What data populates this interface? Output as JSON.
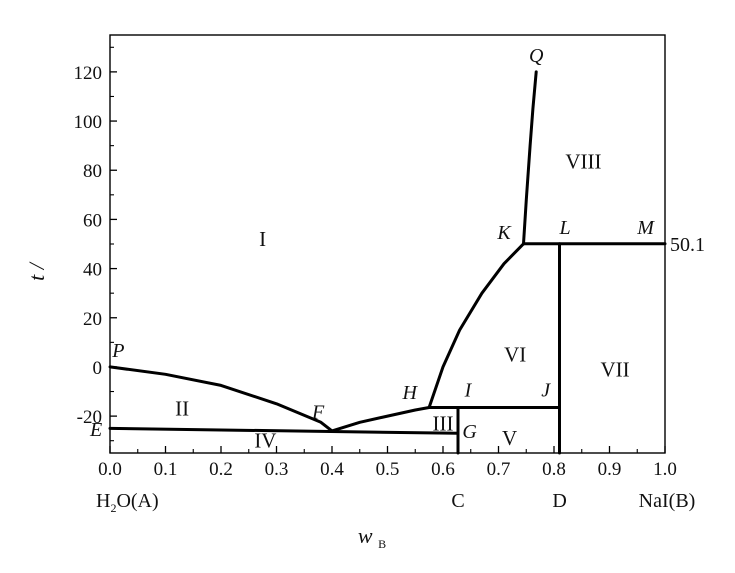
{
  "chart_data": {
    "type": "phase-diagram",
    "xlabel": "w",
    "xlabel_sub": "B",
    "ylabel": "t /",
    "xlim": [
      0.0,
      1.0
    ],
    "ylim": [
      -35,
      135
    ],
    "x_ticks": [
      0.0,
      0.1,
      0.2,
      0.3,
      0.4,
      0.5,
      0.6,
      0.7,
      0.8,
      0.9,
      1.0
    ],
    "x_tick_labels": [
      "0.0",
      "0.1",
      "0.2",
      "0.3",
      "0.4",
      "0.5",
      "0.6",
      "0.7",
      "0.8",
      "0.9",
      "1.0"
    ],
    "y_ticks": [
      -20,
      0,
      20,
      40,
      60,
      80,
      100,
      120
    ],
    "y_tick_labels": [
      "-20",
      "0",
      "20",
      "40",
      "60",
      "80",
      "100",
      "120"
    ],
    "components": [
      {
        "label_main": "H",
        "label_sub": "2",
        "label_rest": "O(A)",
        "x": 0.0
      },
      {
        "label_main": "C",
        "label_sub": "",
        "label_rest": "",
        "x": 0.627
      },
      {
        "label_main": "D",
        "label_sub": "",
        "label_rest": "",
        "x": 0.81
      },
      {
        "label_main": "NaI(B)",
        "label_sub": "",
        "label_rest": "",
        "x": 1.0
      }
    ],
    "side_annotation": {
      "text": "50.1",
      "y": 50.1
    },
    "curves": [
      {
        "name": "PF",
        "points": [
          [
            0.0,
            0.0
          ],
          [
            0.1,
            -3.0
          ],
          [
            0.2,
            -7.5
          ],
          [
            0.3,
            -15.0
          ],
          [
            0.38,
            -22.5
          ],
          [
            0.4,
            -26.0
          ]
        ]
      },
      {
        "name": "FH",
        "points": [
          [
            0.4,
            -26.0
          ],
          [
            0.45,
            -22.5
          ],
          [
            0.5,
            -20.0
          ],
          [
            0.55,
            -17.5
          ],
          [
            0.575,
            -16.5
          ]
        ]
      },
      {
        "name": "HK",
        "points": [
          [
            0.575,
            -16.5
          ],
          [
            0.6,
            0.0
          ],
          [
            0.63,
            15.0
          ],
          [
            0.67,
            30.0
          ],
          [
            0.71,
            42.0
          ],
          [
            0.745,
            50.1
          ]
        ]
      },
      {
        "name": "KQ",
        "points": [
          [
            0.745,
            50.1
          ],
          [
            0.75,
            68.0
          ],
          [
            0.757,
            90.0
          ],
          [
            0.762,
            105.0
          ],
          [
            0.768,
            120.0
          ]
        ]
      },
      {
        "name": "EF-tieline",
        "points": [
          [
            0.0,
            -25.0
          ],
          [
            0.627,
            -27.0
          ]
        ]
      },
      {
        "name": "HJ-tieline",
        "points": [
          [
            0.575,
            -16.5
          ],
          [
            0.81,
            -16.5
          ]
        ]
      },
      {
        "name": "KM-tieline",
        "points": [
          [
            0.745,
            50.1
          ],
          [
            1.0,
            50.1
          ]
        ]
      },
      {
        "name": "C-vertical",
        "points": [
          [
            0.627,
            -16.5
          ],
          [
            0.627,
            -35.0
          ]
        ]
      },
      {
        "name": "D-vertical",
        "points": [
          [
            0.81,
            50.1
          ],
          [
            0.81,
            -35.0
          ]
        ]
      }
    ],
    "point_labels": [
      {
        "label": "P",
        "x": 0.015,
        "y": 4.0
      },
      {
        "label": "E",
        "x": -0.025,
        "y": -28.0
      },
      {
        "label": "F",
        "x": 0.375,
        "y": -21.0
      },
      {
        "label": "H",
        "x": 0.54,
        "y": -13.0
      },
      {
        "label": "I",
        "x": 0.645,
        "y": -12.0
      },
      {
        "label": "G",
        "x": 0.648,
        "y": -29.0
      },
      {
        "label": "J",
        "x": 0.785,
        "y": -12.0
      },
      {
        "label": "K",
        "x": 0.71,
        "y": 52.0
      },
      {
        "label": "L",
        "x": 0.82,
        "y": 54.0
      },
      {
        "label": "M",
        "x": 0.965,
        "y": 54.0
      },
      {
        "label": "Q",
        "x": 0.768,
        "y": 124.0
      }
    ],
    "regions": [
      {
        "label": "I",
        "x": 0.275,
        "y": 52.0
      },
      {
        "label": "II",
        "x": 0.13,
        "y": -17.0
      },
      {
        "label": "III",
        "x": 0.6,
        "y": -23.0
      },
      {
        "label": "IV",
        "x": 0.28,
        "y": -30.0
      },
      {
        "label": "V",
        "x": 0.72,
        "y": -29.0
      },
      {
        "label": "VI",
        "x": 0.73,
        "y": 5.0
      },
      {
        "label": "VII",
        "x": 0.91,
        "y": -1.0
      },
      {
        "label": "VIII",
        "x": 0.853,
        "y": 83.5
      }
    ]
  }
}
